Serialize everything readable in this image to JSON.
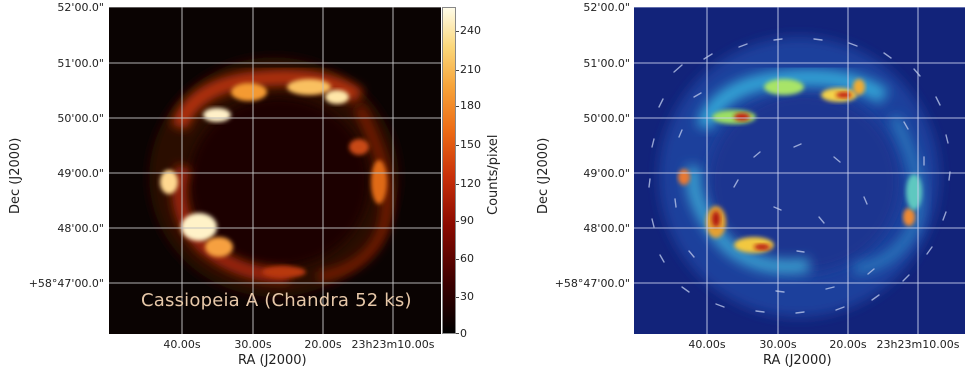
{
  "left_panel": {
    "ylabel": "Dec (J2000)",
    "xlabel": "RA (J2000)",
    "yticks": [
      "52'00.0\"",
      "51'00.0\"",
      "50'00.0\"",
      "49'00.0\"",
      "48'00.0\"",
      "+58°47'00.0\""
    ],
    "xticks": [
      "40.00s",
      "30.00s",
      "20.00s",
      "23h23m10.00s"
    ],
    "caption": "Cassiopeia A (Chandra 52 ks)"
  },
  "colorbar": {
    "label": "Counts/pixel",
    "ticks": [
      "240",
      "210",
      "180",
      "150",
      "120",
      "90",
      "60",
      "30",
      "0"
    ],
    "range": [
      0,
      255
    ]
  },
  "right_panel": {
    "ylabel": "Dec (J2000)",
    "xlabel": "RA (J2000)",
    "yticks": [
      "52'00.0\"",
      "51'00.0\"",
      "50'00.0\"",
      "49'00.0\"",
      "48'00.0\"",
      "+58°47'00.0\""
    ],
    "xticks": [
      "40.00s",
      "30.00s",
      "20.00s",
      "23h23m10.00s"
    ]
  },
  "colors": {
    "left_background": "#0a0302",
    "right_background": "#12237a",
    "grid": "#bfbfbf"
  }
}
